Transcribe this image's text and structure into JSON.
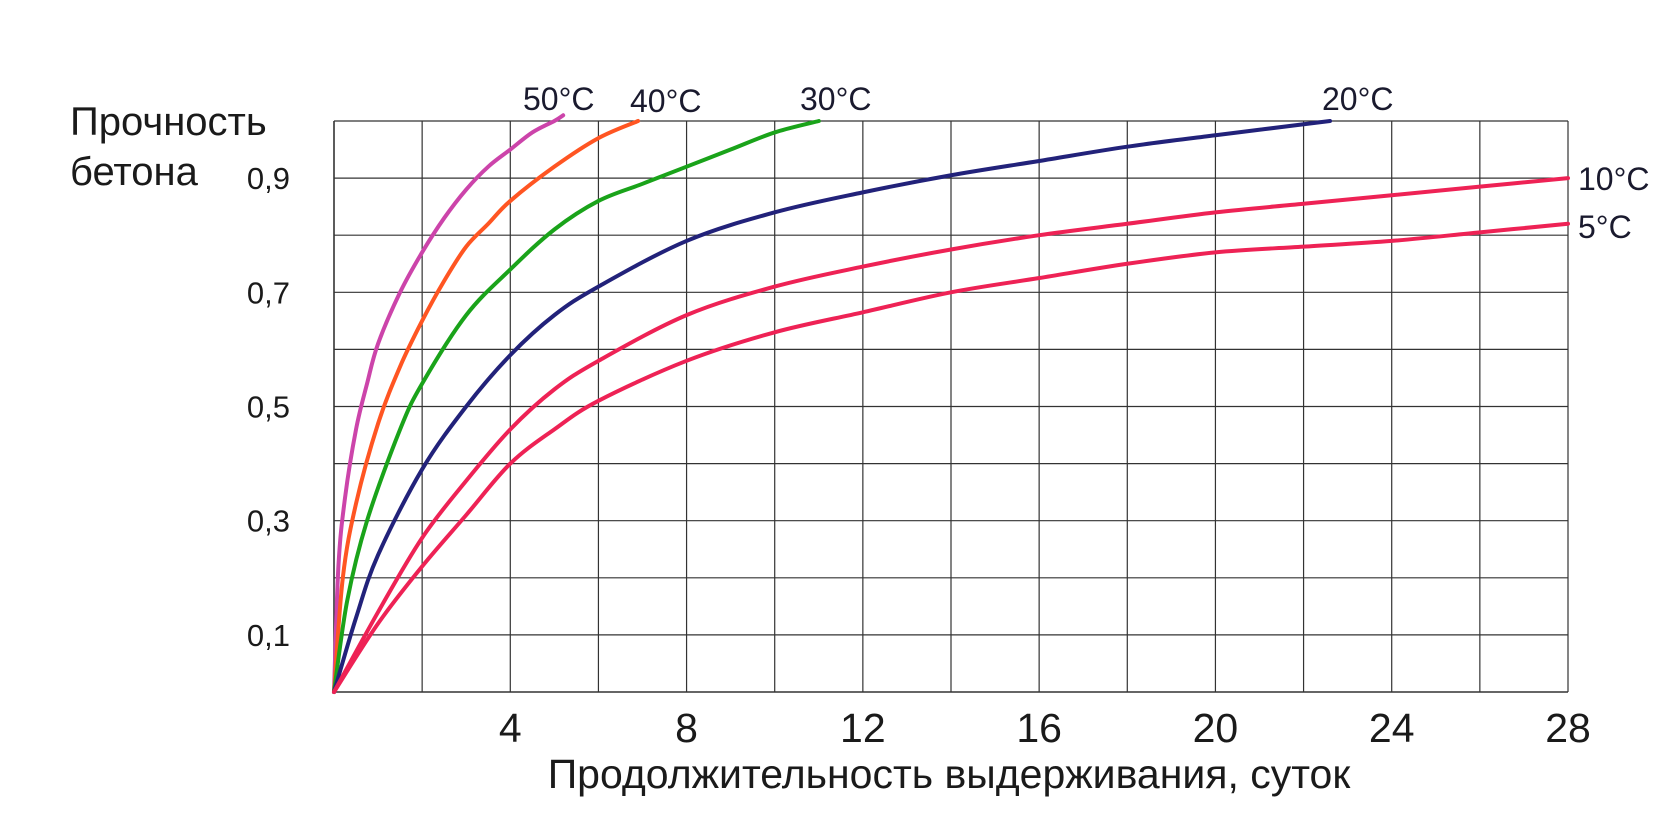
{
  "chart_data": {
    "type": "line",
    "title": "",
    "ylabel_lines": [
      "Прочность",
      "бетона"
    ],
    "xlabel": "Продолжительность выдерживания, суток",
    "xlim": [
      0,
      28
    ],
    "ylim": [
      0,
      0.9
    ],
    "grid": true,
    "x_ticks": [
      4,
      8,
      12,
      16,
      20,
      24,
      28
    ],
    "x_tick_labels": [
      "4",
      "8",
      "12",
      "16",
      "20",
      "24",
      "28"
    ],
    "y_ticks": [
      0.1,
      0.3,
      0.5,
      0.7,
      0.9
    ],
    "y_tick_labels": [
      "0,1",
      "0,3",
      "0,5",
      "0,7",
      "0,9"
    ],
    "series": [
      {
        "name": "50°C",
        "color": "#cc44aa",
        "x": [
          0,
          0.1,
          0.25,
          0.5,
          0.75,
          1,
          1.5,
          2,
          2.5,
          3,
          3.5,
          4,
          4.5,
          5,
          5.2
        ],
        "y": [
          0,
          0.22,
          0.34,
          0.46,
          0.54,
          0.61,
          0.7,
          0.77,
          0.83,
          0.88,
          0.92,
          0.95,
          0.98,
          1.0,
          1.01
        ]
      },
      {
        "name": "40°C",
        "color": "#ff5522",
        "x": [
          0,
          0.2,
          0.5,
          1,
          1.5,
          2,
          2.5,
          3,
          3.5,
          4,
          5,
          6,
          6.9
        ],
        "y": [
          0,
          0.2,
          0.33,
          0.47,
          0.57,
          0.65,
          0.72,
          0.78,
          0.82,
          0.86,
          0.92,
          0.97,
          1.0
        ]
      },
      {
        "name": "30°C",
        "color": "#1aa31a",
        "x": [
          0,
          0.3,
          0.75,
          1.5,
          2,
          3,
          4,
          5,
          6,
          7,
          8,
          9,
          10,
          11
        ],
        "y": [
          0,
          0.16,
          0.3,
          0.46,
          0.54,
          0.66,
          0.74,
          0.81,
          0.86,
          0.89,
          0.92,
          0.95,
          0.98,
          1.0
        ]
      },
      {
        "name": "20°C",
        "color": "#22227a",
        "x": [
          0,
          0.5,
          1,
          2,
          3,
          4,
          5,
          6,
          8,
          10,
          12,
          14,
          16,
          18,
          20,
          22.6
        ],
        "y": [
          0,
          0.13,
          0.24,
          0.39,
          0.5,
          0.59,
          0.66,
          0.71,
          0.79,
          0.84,
          0.875,
          0.905,
          0.93,
          0.955,
          0.975,
          1.0
        ]
      },
      {
        "name": "10°C",
        "color": "#ee2255",
        "x": [
          0,
          1,
          2,
          3,
          4,
          5,
          6,
          8,
          10,
          12,
          14,
          16,
          18,
          20,
          22,
          24,
          26,
          28
        ],
        "y": [
          0,
          0.14,
          0.27,
          0.37,
          0.46,
          0.53,
          0.58,
          0.66,
          0.71,
          0.745,
          0.775,
          0.8,
          0.82,
          0.84,
          0.855,
          0.87,
          0.885,
          0.9
        ]
      },
      {
        "name": "5°C",
        "color": "#ee2255",
        "x": [
          0,
          1,
          2,
          3,
          4,
          5,
          6,
          8,
          10,
          12,
          14,
          16,
          18,
          20,
          22,
          24,
          26,
          28
        ],
        "y": [
          0,
          0.12,
          0.22,
          0.31,
          0.4,
          0.46,
          0.51,
          0.58,
          0.63,
          0.665,
          0.7,
          0.725,
          0.75,
          0.77,
          0.78,
          0.79,
          0.805,
          0.82
        ]
      }
    ]
  }
}
